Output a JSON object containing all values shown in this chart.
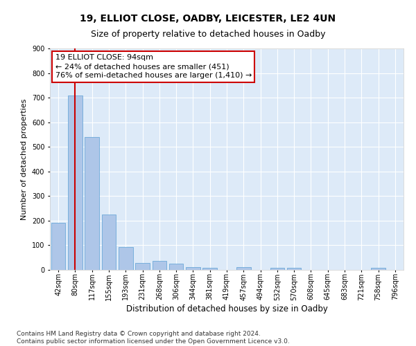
{
  "title1": "19, ELLIOT CLOSE, OADBY, LEICESTER, LE2 4UN",
  "title2": "Size of property relative to detached houses in Oadby",
  "xlabel": "Distribution of detached houses by size in Oadby",
  "ylabel": "Number of detached properties",
  "bins": [
    "42sqm",
    "80sqm",
    "117sqm",
    "155sqm",
    "193sqm",
    "231sqm",
    "268sqm",
    "306sqm",
    "344sqm",
    "381sqm",
    "419sqm",
    "457sqm",
    "494sqm",
    "532sqm",
    "570sqm",
    "608sqm",
    "645sqm",
    "683sqm",
    "721sqm",
    "758sqm",
    "796sqm"
  ],
  "values": [
    190,
    710,
    540,
    225,
    93,
    28,
    36,
    25,
    12,
    9,
    1,
    10,
    1,
    9,
    8,
    1,
    0,
    0,
    0,
    8,
    0
  ],
  "bar_color": "#aec6e8",
  "bar_edge_color": "#5a9fd4",
  "vline_x_index": 1,
  "vline_color": "#cc0000",
  "annotation_text": "19 ELLIOT CLOSE: 94sqm\n← 24% of detached houses are smaller (451)\n76% of semi-detached houses are larger (1,410) →",
  "annotation_box_color": "#ffffff",
  "annotation_box_edge": "#cc0000",
  "ylim": [
    0,
    900
  ],
  "yticks": [
    0,
    100,
    200,
    300,
    400,
    500,
    600,
    700,
    800,
    900
  ],
  "bg_color": "#ddeaf8",
  "grid_color": "#ffffff",
  "footnote": "Contains HM Land Registry data © Crown copyright and database right 2024.\nContains public sector information licensed under the Open Government Licence v3.0.",
  "title1_fontsize": 10,
  "title2_fontsize": 9,
  "xlabel_fontsize": 8.5,
  "ylabel_fontsize": 8,
  "tick_fontsize": 7,
  "annot_fontsize": 8,
  "footnote_fontsize": 6.5
}
